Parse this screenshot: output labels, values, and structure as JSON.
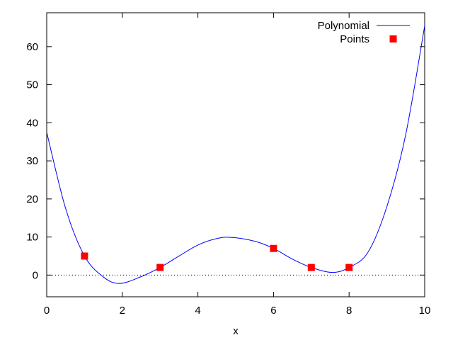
{
  "chart_data": {
    "type": "line",
    "title": "",
    "xlabel": "x",
    "ylabel": "",
    "xlim": [
      0,
      10
    ],
    "ylim": [
      -5.7,
      68.9
    ],
    "grid": false,
    "legend_position": "top-right",
    "x_ticks": [
      0,
      2,
      4,
      6,
      8,
      10
    ],
    "y_ticks": [
      0,
      10,
      20,
      30,
      40,
      50,
      60
    ],
    "x_tick_labels": [
      "0",
      "2",
      "4",
      "6",
      "8",
      "10"
    ],
    "y_tick_labels": [
      "0",
      "10",
      "20",
      "30",
      "40",
      "50",
      "60"
    ],
    "zero_line": true,
    "series": [
      {
        "name": "Polynomial",
        "kind": "line",
        "color": "#0000ff",
        "x": [
          0,
          0.5,
          1,
          1.5,
          1.93,
          2.5,
          3,
          3.5,
          4,
          4.5,
          4.88,
          5.5,
          6,
          6.5,
          7,
          7.56,
          8,
          8.5,
          9,
          9.5,
          10
        ],
        "y": [
          37.5,
          17.5,
          5.0,
          -0.5,
          -2.2,
          -0.4,
          2.0,
          5.0,
          7.9,
          9.6,
          9.9,
          8.9,
          7.0,
          4.2,
          2.0,
          0.7,
          2.0,
          6.0,
          18.0,
          37.0,
          65.5
        ]
      },
      {
        "name": "Points",
        "kind": "scatter",
        "color": "#ff0000",
        "marker": "square",
        "x": [
          1,
          3,
          6,
          7,
          8
        ],
        "y": [
          5,
          2,
          7,
          2,
          2
        ]
      }
    ]
  }
}
